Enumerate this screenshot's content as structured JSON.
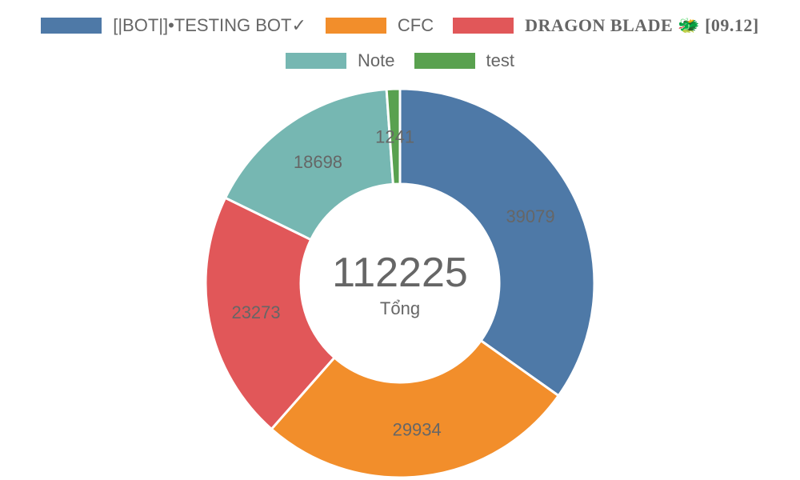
{
  "chart_data": {
    "type": "pie",
    "variant": "doughnut",
    "categories": [
      "[|BOT|]•TESTING BOT✓",
      "CFC",
      "DRAGON BLADE 🐲 [09.12]",
      "Note",
      "test"
    ],
    "values": [
      39079,
      29934,
      23273,
      18698,
      1241
    ],
    "colors": [
      "#4e79a7",
      "#f28e2b",
      "#e15759",
      "#76b7b2",
      "#59a14f"
    ],
    "legend_position": "top",
    "center": {
      "total": "112225",
      "caption": "Tổng"
    }
  }
}
